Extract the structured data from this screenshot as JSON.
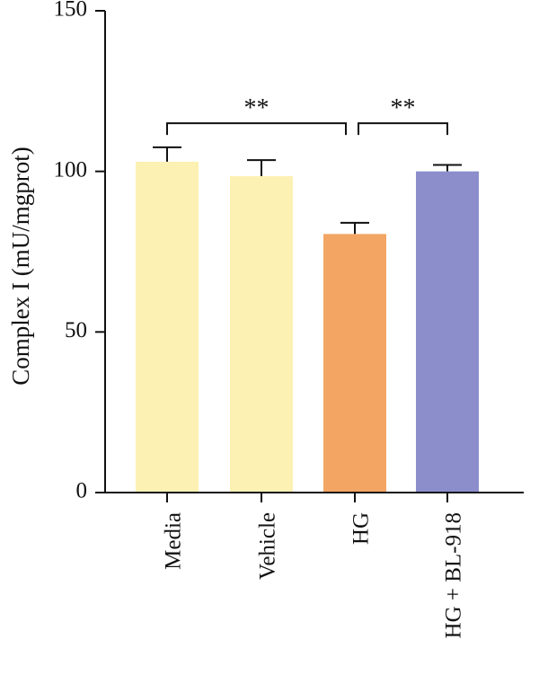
{
  "chart_data": {
    "type": "bar",
    "title": "",
    "xlabel": "",
    "ylabel": "Complex I (mU/mgprot)",
    "ylim": [
      0,
      150
    ],
    "yticks": [
      0,
      50,
      100,
      150
    ],
    "categories": [
      "Media",
      "Vehicle",
      "HG",
      "HG + BL-918"
    ],
    "values": [
      103,
      98.5,
      80.5,
      100
    ],
    "errors": [
      4.5,
      5,
      3.5,
      2
    ],
    "colors": [
      "#FCF1B3",
      "#FCF1B3",
      "#F3A563",
      "#8B8ECB"
    ],
    "grid": false,
    "legend": "none",
    "significance": [
      {
        "from": 0,
        "to": 2,
        "label": "**",
        "y": 115
      },
      {
        "from": 2,
        "to": 3,
        "label": "**",
        "y": 115
      }
    ]
  }
}
